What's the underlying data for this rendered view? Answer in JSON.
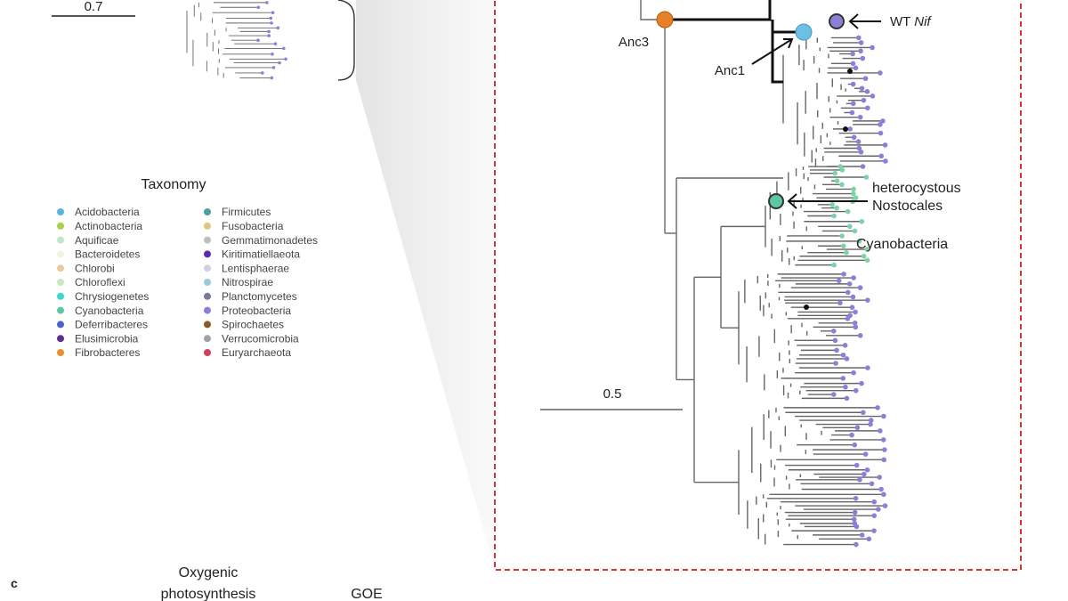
{
  "scale_bars": [
    "0.7",
    "0.5"
  ],
  "legend": {
    "title": "Taxonomy",
    "items": [
      {
        "label": "Acidobacteria",
        "color": "#5ab4e0"
      },
      {
        "label": "Actinobacteria",
        "color": "#a8d04a"
      },
      {
        "label": "Aquificae",
        "color": "#bfe6c8"
      },
      {
        "label": "Bacteroidetes",
        "color": "#eef5d9"
      },
      {
        "label": "Chlorobi",
        "color": "#e8c9a0"
      },
      {
        "label": "Chloroflexi",
        "color": "#c7e8c0"
      },
      {
        "label": "Chrysiogenetes",
        "color": "#3fd5d0"
      },
      {
        "label": "Cyanobacteria",
        "color": "#5cc7a0"
      },
      {
        "label": "Deferribacteres",
        "color": "#4b63c9"
      },
      {
        "label": "Elusimicrobia",
        "color": "#5a2d8f"
      },
      {
        "label": "Fibrobacteres",
        "color": "#e8902a"
      },
      {
        "label": "Firmicutes",
        "color": "#4aa0a0"
      },
      {
        "label": "Fusobacteria",
        "color": "#e0c87a"
      },
      {
        "label": "Gemmatimonadetes",
        "color": "#c0c0b8"
      },
      {
        "label": "Kiritimatiellaeota",
        "color": "#5b2ab5"
      },
      {
        "label": "Lentisphaerae",
        "color": "#d0d0e8"
      },
      {
        "label": "Nitrospirae",
        "color": "#9cc8e0"
      },
      {
        "label": "Planctomycetes",
        "color": "#7a7a9a"
      },
      {
        "label": "Proteobacteria",
        "color": "#8b80d8"
      },
      {
        "label": "Spirochaetes",
        "color": "#8a5a2a"
      },
      {
        "label": "Verrucomicrobia",
        "color": "#a0a0a8"
      },
      {
        "label": "Euryarchaeota",
        "color": "#d04060"
      }
    ]
  },
  "tree_labels": {
    "anc3": "Anc3",
    "anc1": "Anc1",
    "wt": "WT",
    "wt_italic": "Nif",
    "heterocystous": "heterocystous",
    "nostocales": "Nostocales",
    "cyanobacteria": "Cyanobacteria"
  },
  "panel_c": {
    "label": "c",
    "oxygenic": "Oxygenic",
    "photosynthesis": "photosynthesis",
    "goe": "GOE"
  }
}
